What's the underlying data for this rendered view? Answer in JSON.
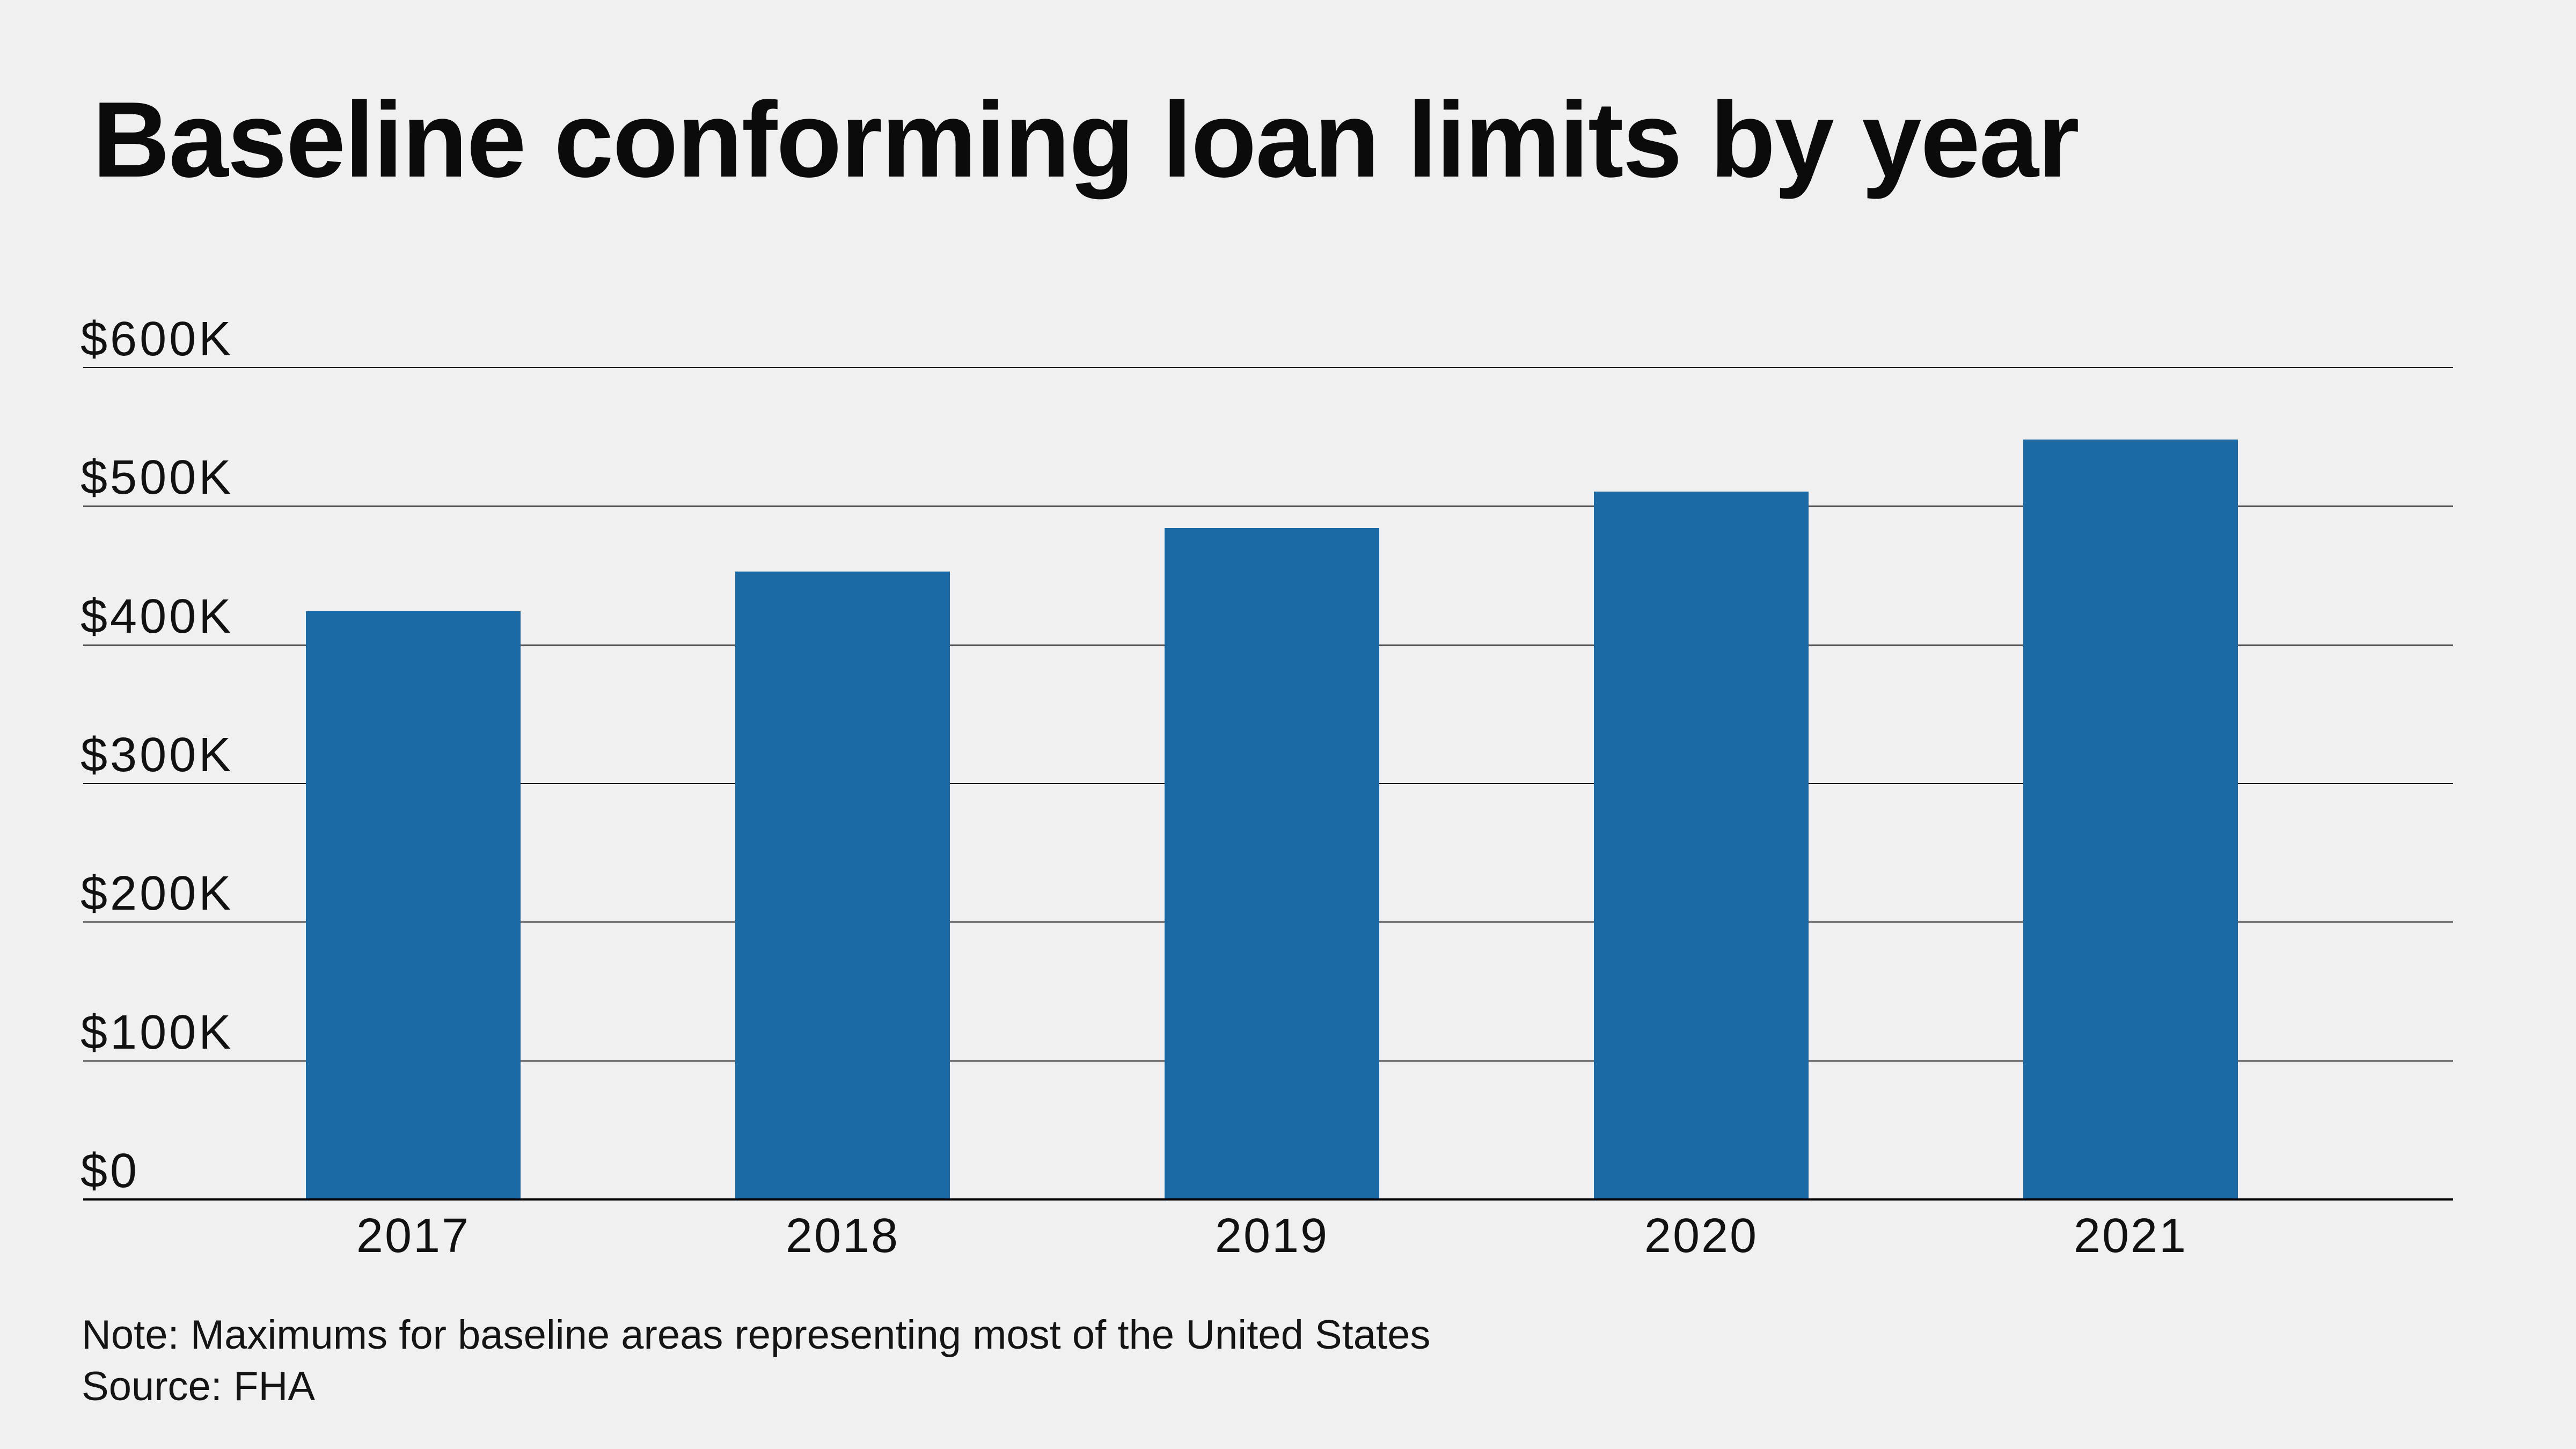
{
  "title": "Baseline conforming loan limits by year",
  "note": "Note: Maximums for baseline areas representing most of the United States",
  "source": "Source: FHA",
  "colors": {
    "background": "#eff0ef",
    "bar": "#1c6aa5",
    "title_text": "#0b0b0b",
    "label_text": "#111111",
    "gridline": "#1b1b1b",
    "baseline": "#000000"
  },
  "chart_data": {
    "type": "bar",
    "title": "Baseline conforming loan limits by year",
    "categories": [
      "2017",
      "2018",
      "2019",
      "2020",
      "2021"
    ],
    "values": [
      424100,
      453100,
      484350,
      510400,
      548250
    ],
    "xlabel": "",
    "ylabel": "",
    "ylim": [
      0,
      600000
    ],
    "y_ticks": [
      {
        "value": 0,
        "label": "$0"
      },
      {
        "value": 100000,
        "label": "$100K"
      },
      {
        "value": 200000,
        "label": "$200K"
      },
      {
        "value": 300000,
        "label": "$300K"
      },
      {
        "value": 400000,
        "label": "$400K"
      },
      {
        "value": 500000,
        "label": "$500K"
      },
      {
        "value": 600000,
        "label": "$600K"
      }
    ],
    "grid": "horizontal",
    "legend": "none",
    "note": "Note: Maximums for baseline areas representing most of the United States",
    "source": "Source: FHA"
  }
}
